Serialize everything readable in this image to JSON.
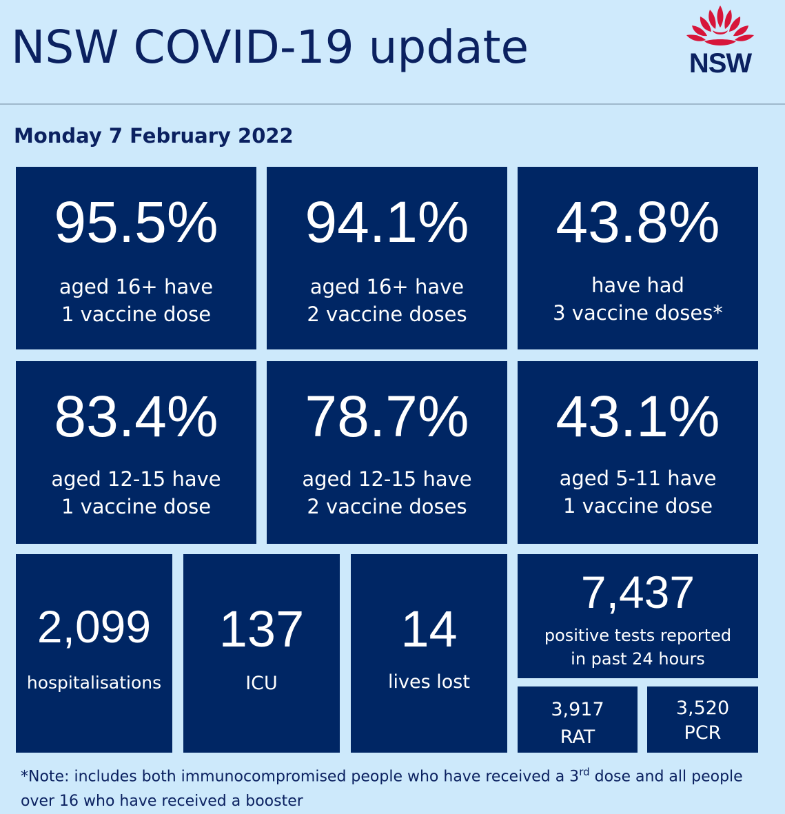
{
  "header": {
    "title": "NSW COVID-19 update",
    "logo_text": "NSW",
    "logo_icon": "waratah-flower-icon",
    "logo_color": "#d7153a"
  },
  "date": "Monday 7 February 2022",
  "colors": {
    "background": "#cde9fb",
    "tile": "#002664",
    "text_dark": "#0b2160"
  },
  "vaccination_tiles": [
    {
      "value": "95.5%",
      "line1": "aged 16+ have",
      "line2": "1 vaccine dose"
    },
    {
      "value": "94.1%",
      "line1": "aged 16+ have",
      "line2": "2 vaccine doses"
    },
    {
      "value": "43.8%",
      "line1": "have had",
      "line2": "3 vaccine doses*"
    },
    {
      "value": "83.4%",
      "line1": "aged 12-15 have",
      "line2": "1 vaccine dose"
    },
    {
      "value": "78.7%",
      "line1": "aged 12-15 have",
      "line2": "2 vaccine doses"
    },
    {
      "value": "43.1%",
      "line1": "aged 5-11 have",
      "line2": "1 vaccine dose"
    }
  ],
  "stats": [
    {
      "value": "2,099",
      "label": "hospitalisations"
    },
    {
      "value": "137",
      "label": "ICU"
    },
    {
      "value": "14",
      "label": "lives lost"
    }
  ],
  "positive_tests": {
    "value": "7,437",
    "line1": "positive tests reported",
    "line2": "in past 24 hours",
    "rat": {
      "value": "3,917",
      "label": "RAT"
    },
    "pcr": {
      "value": "3,520",
      "label": "PCR"
    }
  },
  "note": {
    "prefix": "*Note: includes both immunocompromised people who have received a 3",
    "superscript": "rd",
    "suffix": " dose and all people over 16 who have received a booster"
  }
}
